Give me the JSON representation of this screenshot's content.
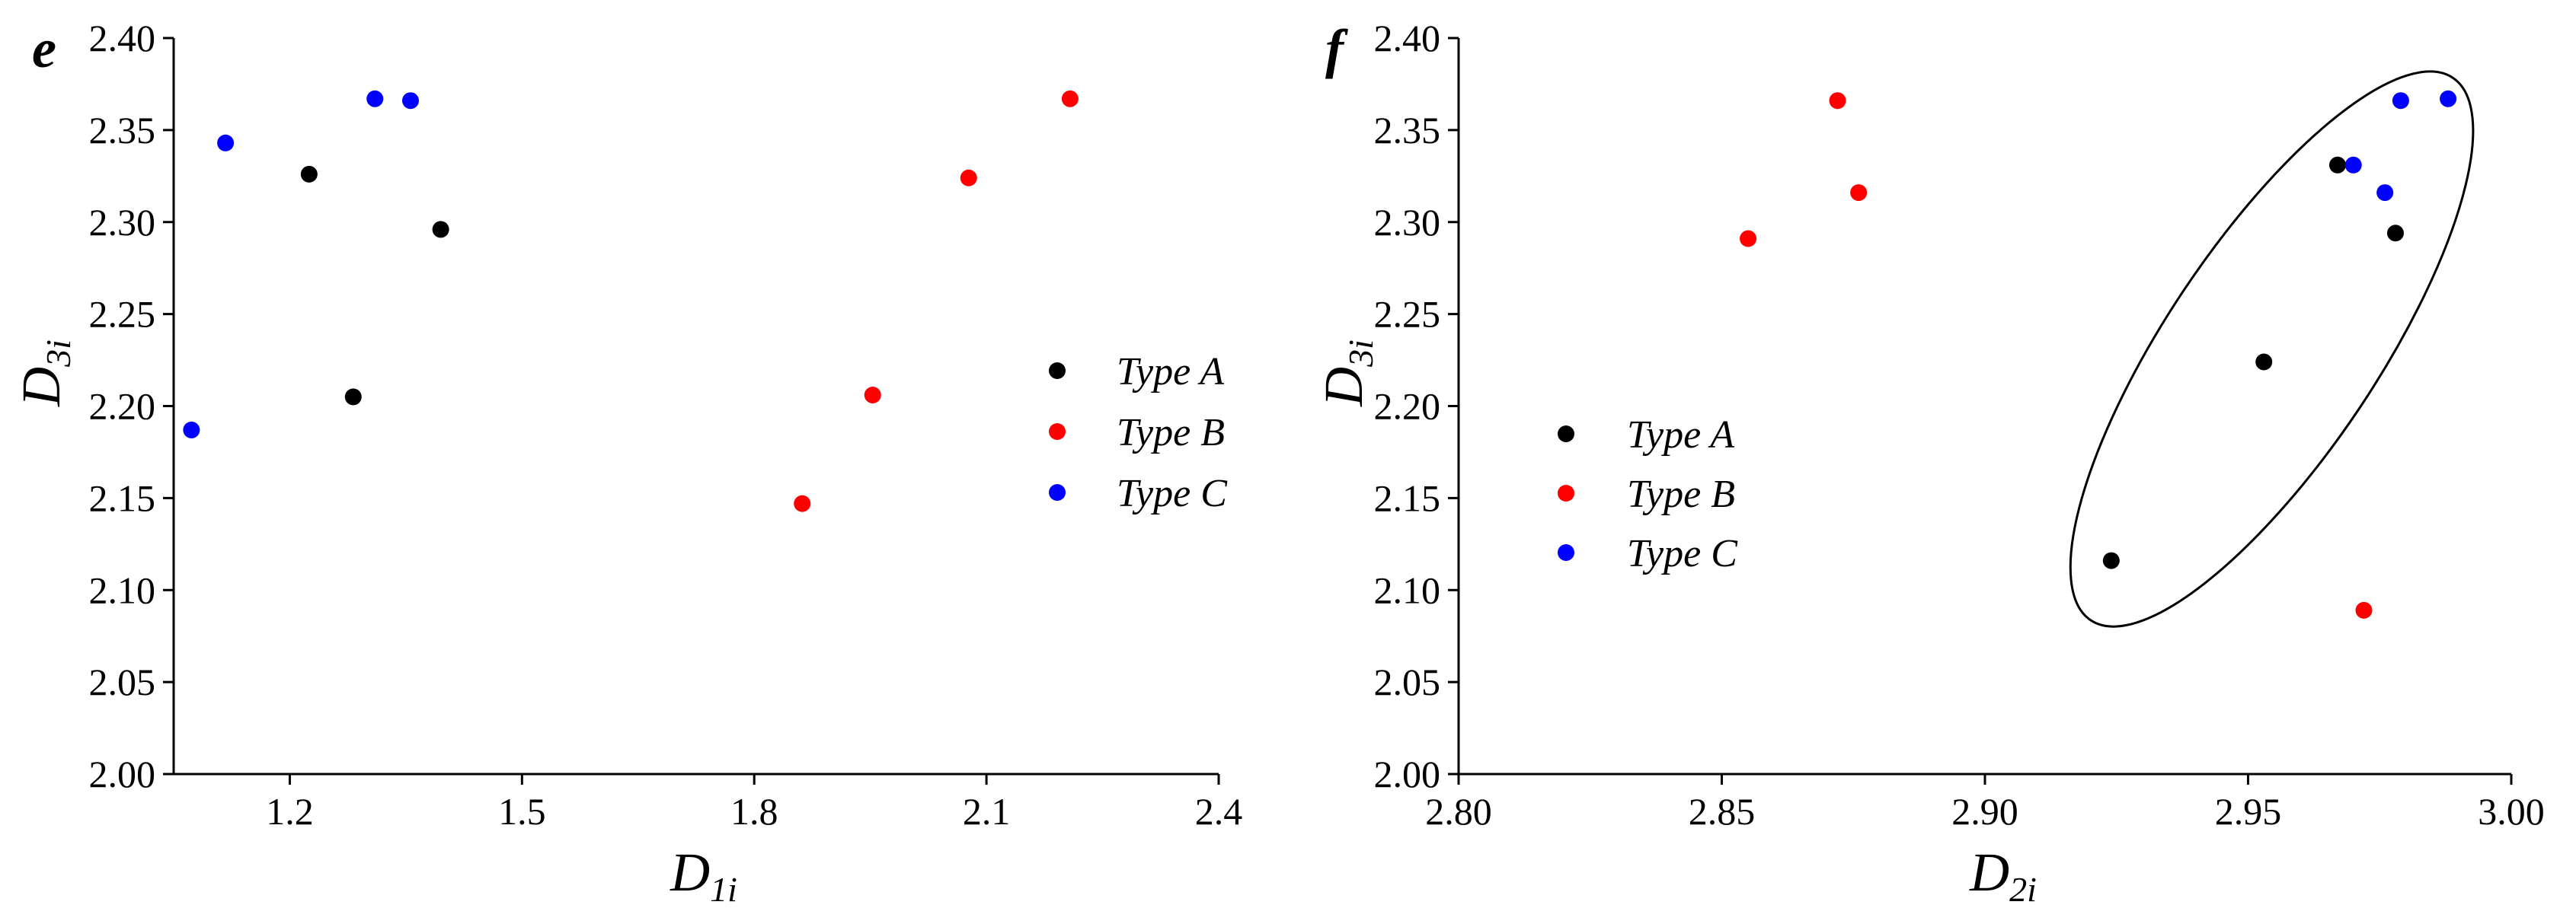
{
  "chart_data": [
    {
      "type": "scatter",
      "panel_label": "e",
      "title": "",
      "xlabel": {
        "main": "D",
        "sub": "1i"
      },
      "ylabel": {
        "main": "D",
        "sub": "3i"
      },
      "xlim": [
        1.05,
        2.4
      ],
      "ylim": [
        2.0,
        2.4
      ],
      "xticks": [
        1.2,
        1.5,
        1.8,
        2.1,
        2.4
      ],
      "xtick_labels": [
        "1.2",
        "1.5",
        "1.8",
        "2.1",
        "2.4"
      ],
      "yticks": [
        2.0,
        2.05,
        2.1,
        2.15,
        2.2,
        2.25,
        2.3,
        2.35,
        2.4
      ],
      "ytick_labels": [
        "2.00",
        "2.05",
        "2.10",
        "2.15",
        "2.20",
        "2.25",
        "2.30",
        "2.35",
        "2.40"
      ],
      "grid": false,
      "legend_position": "center-right",
      "series": [
        {
          "name": "Type A",
          "color": "#000000",
          "points": [
            [
              1.225,
              2.326
            ],
            [
              1.282,
              2.205
            ],
            [
              1.395,
              2.296
            ]
          ]
        },
        {
          "name": "Type B",
          "color": "#ff0000",
          "points": [
            [
              1.862,
              2.147
            ],
            [
              1.953,
              2.206
            ],
            [
              2.077,
              2.324
            ],
            [
              2.208,
              2.367
            ]
          ]
        },
        {
          "name": "Type C",
          "color": "#0000ff",
          "points": [
            [
              1.073,
              2.187
            ],
            [
              1.117,
              2.343
            ],
            [
              1.31,
              2.367
            ],
            [
              1.356,
              2.366
            ]
          ]
        }
      ]
    },
    {
      "type": "scatter",
      "panel_label": "f",
      "title": "",
      "xlabel": {
        "main": "D",
        "sub": "2i"
      },
      "ylabel": {
        "main": "D",
        "sub": "3i"
      },
      "xlim": [
        2.8,
        3.0
      ],
      "ylim": [
        2.0,
        2.4
      ],
      "xticks": [
        2.8,
        2.85,
        2.9,
        2.95,
        3.0
      ],
      "xtick_labels": [
        "2.80",
        "2.85",
        "2.90",
        "2.95",
        "3.00"
      ],
      "yticks": [
        2.0,
        2.05,
        2.1,
        2.15,
        2.2,
        2.25,
        2.3,
        2.35,
        2.4
      ],
      "ytick_labels": [
        "2.00",
        "2.05",
        "2.10",
        "2.15",
        "2.20",
        "2.25",
        "2.30",
        "2.35",
        "2.40"
      ],
      "grid": false,
      "legend_position": "center-left",
      "series": [
        {
          "name": "Type A",
          "color": "#000000",
          "points": [
            [
              2.924,
              2.116
            ],
            [
              2.953,
              2.224
            ],
            [
              2.967,
              2.331
            ],
            [
              2.978,
              2.294
            ]
          ]
        },
        {
          "name": "Type B",
          "color": "#ff0000",
          "points": [
            [
              2.855,
              2.291
            ],
            [
              2.872,
              2.366
            ],
            [
              2.876,
              2.316
            ],
            [
              2.972,
              2.089
            ]
          ]
        },
        {
          "name": "Type C",
          "color": "#0000ff",
          "points": [
            [
              2.97,
              2.331
            ],
            [
              2.976,
              2.316
            ],
            [
              2.979,
              2.366
            ],
            [
              2.988,
              2.367
            ]
          ]
        }
      ],
      "annotation": {
        "shape": "ellipse",
        "description": "outline enclosing the Type A and Type C cluster",
        "center": [
          2.9545,
          2.231
        ],
        "semi_major": {
          "dx": 0.0344,
          "dy": 0.1474
        },
        "semi_minor": {
          "dx": -0.0186,
          "dy": 0.0218
        }
      }
    }
  ]
}
